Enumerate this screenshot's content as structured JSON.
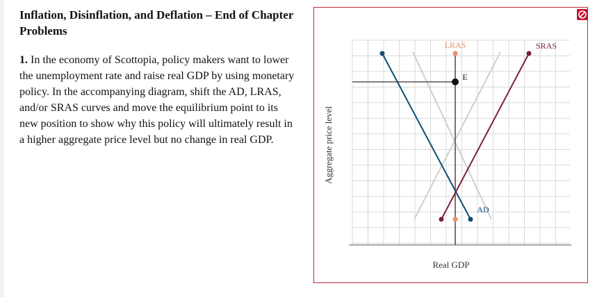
{
  "problem": {
    "heading": "Inflation, Disinflation, and Deflation – End of Chapter Problems",
    "number": "1.",
    "text": "In the economy of Scottopia, policy makers want to lower the unemployment rate and raise real GDP by using monetary policy. In the accompanying diagram, shift the AD, LRAS, and/or SRAS curves and move the equilibrium point to its new position to show why this policy will ultimately result in a higher aggregate price level but no change in real GDP."
  },
  "graph": {
    "reset_icon": "no-entry-icon",
    "x_axis_label": "Real GDP",
    "y_axis_label": "Aggregate price level",
    "curves": {
      "lras": {
        "label": "LRAS",
        "color": "#e8916a",
        "line_color": "#6b4a3a"
      },
      "sras": {
        "label": "SRAS",
        "color": "#7a1f3d"
      },
      "ad": {
        "label": "AD",
        "color": "#0f4c75"
      }
    },
    "equilibrium": {
      "label": "E"
    },
    "colors": {
      "panel_border": "#c0283a",
      "grid": "#d9d9d9",
      "ghost_curve": "#cfcfcf"
    }
  }
}
